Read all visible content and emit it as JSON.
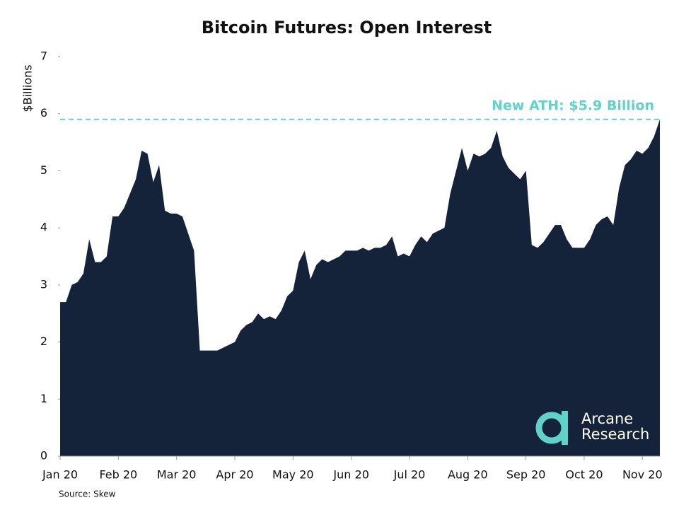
{
  "chart_data": {
    "type": "area",
    "title": "Bitcoin Futures: Open Interest",
    "y_label": "$Billions",
    "source": "Source: Skew",
    "logo": [
      "Arcane",
      "Research"
    ],
    "annotations": [
      {
        "text": "New ATH: $5.9 Billion",
        "value": 5.9,
        "color": "#5fd3c9"
      }
    ],
    "categories": [
      "Jan 20",
      null,
      null,
      null,
      null,
      null,
      null,
      null,
      null,
      null,
      "Feb 20",
      null,
      null,
      null,
      null,
      null,
      null,
      null,
      null,
      null,
      "Mar 20",
      null,
      null,
      null,
      null,
      null,
      null,
      null,
      null,
      null,
      "Apr 20",
      null,
      null,
      null,
      null,
      null,
      null,
      null,
      null,
      null,
      "May 20",
      null,
      null,
      null,
      null,
      null,
      null,
      null,
      null,
      null,
      "Jun 20",
      null,
      null,
      null,
      null,
      null,
      null,
      null,
      null,
      null,
      "Jul 20",
      null,
      null,
      null,
      null,
      null,
      null,
      null,
      null,
      null,
      "Aug 20",
      null,
      null,
      null,
      null,
      null,
      null,
      null,
      null,
      null,
      "Sep 20",
      null,
      null,
      null,
      null,
      null,
      null,
      null,
      null,
      null,
      "Oct 20",
      null,
      null,
      null,
      null,
      null,
      null,
      null,
      null,
      null,
      "Nov 20",
      null,
      null,
      null
    ],
    "series": [
      {
        "name": "Open Interest",
        "color": "#14233a",
        "values": [
          2.7,
          2.7,
          3.0,
          3.05,
          3.2,
          3.8,
          3.4,
          3.4,
          3.5,
          4.2,
          4.2,
          4.35,
          4.6,
          4.85,
          5.35,
          5.3,
          4.8,
          5.1,
          4.3,
          4.25,
          4.25,
          4.2,
          3.9,
          3.6,
          1.85,
          1.85,
          1.85,
          1.85,
          1.9,
          1.95,
          2.0,
          2.2,
          2.3,
          2.35,
          2.5,
          2.4,
          2.45,
          2.4,
          2.55,
          2.8,
          2.9,
          3.4,
          3.6,
          3.1,
          3.35,
          3.45,
          3.4,
          3.45,
          3.5,
          3.6,
          3.6,
          3.6,
          3.65,
          3.6,
          3.65,
          3.65,
          3.7,
          3.85,
          3.5,
          3.55,
          3.5,
          3.7,
          3.85,
          3.75,
          3.9,
          3.95,
          4.0,
          4.6,
          5.0,
          5.4,
          5.0,
          5.3,
          5.25,
          5.3,
          5.4,
          5.7,
          5.25,
          5.05,
          4.95,
          4.85,
          5.0,
          3.7,
          3.65,
          3.75,
          3.9,
          4.05,
          4.05,
          3.8,
          3.65,
          3.65,
          3.65,
          3.8,
          4.05,
          4.15,
          4.2,
          4.05,
          4.7,
          5.1,
          5.2,
          5.35,
          5.3,
          5.4,
          5.6,
          5.9
        ]
      }
    ],
    "ylim": [
      0,
      7
    ],
    "yticks": [
      0,
      1,
      2,
      3,
      4,
      5,
      6,
      7
    ]
  }
}
